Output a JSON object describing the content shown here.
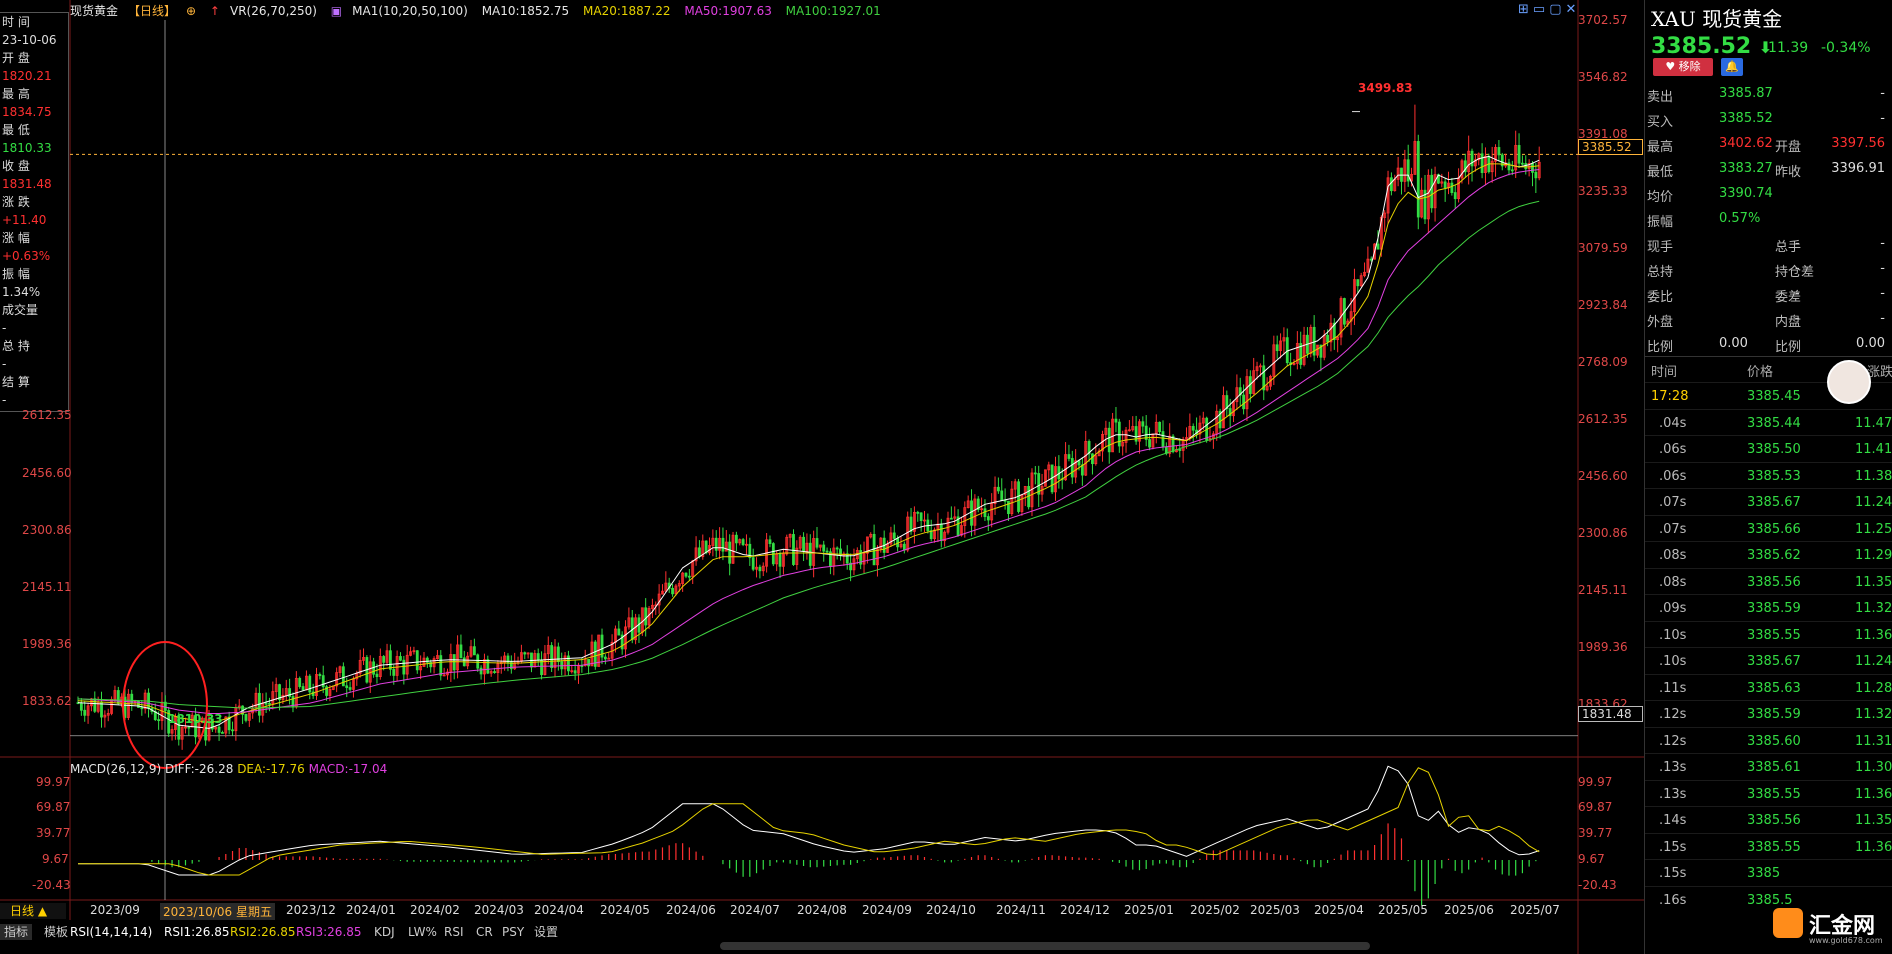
{
  "header": {
    "symbol_name": "现货黄金",
    "period_tag": "【日线】",
    "vr": "VR(26,70,250)",
    "ma_label": "MA1(10,20,50,100)",
    "ma10": "MA10:1852.75",
    "ma20": "MA20:1887.22",
    "ma50": "MA50:1907.63",
    "ma100": "MA100:1927.01"
  },
  "info_panel": {
    "time_label": "时 间",
    "time_value": "23-10-06",
    "open_label": "开 盘",
    "open_value": "1820.21",
    "high_label": "最 高",
    "high_value": "1834.75",
    "low_label": "最 低",
    "low_value": "1810.33",
    "close_label": "收 盘",
    "close_value": "1831.48",
    "change_label": "涨 跌",
    "change_value": "+11.40",
    "change_pct_label": "涨 幅",
    "change_pct_value": "+0.63%",
    "amplitude_label": "振 幅",
    "amplitude_value": "1.34%",
    "volume_label": "成交量",
    "volume_value": "-",
    "oi_label": "总 持",
    "oi_value": "-",
    "settle_label": "结 算",
    "settle_value": "-"
  },
  "price_axis": {
    "left_ticks": [
      "2612.35",
      "2456.60",
      "2300.86",
      "2145.11",
      "1989.36",
      "1833.62"
    ],
    "right_ticks": [
      "3702.57",
      "3546.82",
      "3391.08",
      "3235.33",
      "3079.59",
      "2923.84",
      "2768.09",
      "2612.35",
      "2456.60",
      "2300.86",
      "2145.11",
      "1989.36",
      "1833.62"
    ],
    "current_price_tag": "3385.52",
    "crosshair_price_tag": "1831.48",
    "high_annotation": "3499.83",
    "low_annotation": "1810.33"
  },
  "macd": {
    "label": "MACD(26,12,9)",
    "diff": "DIFF:-26.28",
    "dea": "DEA:-17.76",
    "macd": "MACD:-17.04",
    "ticks": [
      "99.97",
      "69.87",
      "39.77",
      "9.67",
      "-20.43"
    ]
  },
  "date_axis": {
    "period_button": "日线 ▲",
    "crosshair_date": "2023/10/06 星期五",
    "labels": [
      "2023/09",
      "2023/12",
      "2024/01",
      "2024/02",
      "2024/03",
      "2024/04",
      "2024/05",
      "2024/06",
      "2024/07",
      "2024/08",
      "2024/09",
      "2024/10",
      "2024/11",
      "2024/12",
      "2025/01",
      "2025/02",
      "2025/03",
      "2025/04",
      "2025/05",
      "2025/06",
      "2025/07"
    ]
  },
  "bottom_tabs": {
    "indicator_tab": "指标",
    "template_tab": "模板",
    "rsi_label": "RSI(14,14,14)",
    "rsi1": "RSI1:26.85",
    "rsi2": "RSI2:26.85",
    "rsi3": "RSI3:26.85",
    "sub_tabs": [
      "KDJ",
      "LW%",
      "RSI",
      "CR",
      "PSY",
      "设置"
    ]
  },
  "side_panel": {
    "code": "XAU",
    "name": "现货黄金",
    "last_price": "3385.52",
    "arrow": "⬇",
    "change": "-11.39",
    "change_pct": "-0.34%",
    "remove_button": "♥ 移除",
    "quote_rows": [
      {
        "label": "卖出",
        "value": "3385.87",
        "label2": "",
        "value2": "-"
      },
      {
        "label": "买入",
        "value": "3385.52",
        "label2": "",
        "value2": "-"
      },
      {
        "label": "最高",
        "value": "3402.62",
        "label2": "开盘",
        "value2": "3397.56"
      },
      {
        "label": "最低",
        "value": "3383.27",
        "label2": "昨收",
        "value2": "3396.91"
      },
      {
        "label": "均价",
        "value": "3390.74",
        "label2": "",
        "value2": ""
      },
      {
        "label": "振幅",
        "value": "0.57%",
        "label2": "",
        "value2": ""
      },
      {
        "label": "现手",
        "value": "-",
        "label2": "总手",
        "value2": "-"
      },
      {
        "label": "总持",
        "value": "-",
        "label2": "持仓差",
        "value2": "-"
      },
      {
        "label": "委比",
        "value": "-",
        "label2": "委差",
        "value2": "-"
      },
      {
        "label": "外盘",
        "value": "-",
        "label2": "内盘",
        "value2": "-"
      },
      {
        "label": "比例",
        "value": "0.00",
        "label2": "比例",
        "value2": "0.00"
      }
    ],
    "tick_headers": {
      "time": "时间",
      "price": "价格",
      "change": "涨跌"
    },
    "ticks": [
      {
        "time": "17:28",
        "price": "3385.45",
        "change": "1"
      },
      {
        "time": ".04s",
        "price": "3385.44",
        "change": "11.47"
      },
      {
        "time": ".06s",
        "price": "3385.50",
        "change": "11.41"
      },
      {
        "time": ".06s",
        "price": "3385.53",
        "change": "11.38"
      },
      {
        "time": ".07s",
        "price": "3385.67",
        "change": "11.24"
      },
      {
        "time": ".07s",
        "price": "3385.66",
        "change": "11.25"
      },
      {
        "time": ".08s",
        "price": "3385.62",
        "change": "11.29"
      },
      {
        "time": ".08s",
        "price": "3385.56",
        "change": "11.35"
      },
      {
        "time": ".09s",
        "price": "3385.59",
        "change": "11.32"
      },
      {
        "time": ".10s",
        "price": "3385.55",
        "change": "11.36"
      },
      {
        "time": ".10s",
        "price": "3385.67",
        "change": "11.24"
      },
      {
        "time": ".11s",
        "price": "3385.63",
        "change": "11.28"
      },
      {
        "time": ".12s",
        "price": "3385.59",
        "change": "11.32"
      },
      {
        "time": ".12s",
        "price": "3385.60",
        "change": "11.31"
      },
      {
        "time": ".13s",
        "price": "3385.61",
        "change": "11.30"
      },
      {
        "time": ".13s",
        "price": "3385.55",
        "change": "11.36"
      },
      {
        "time": ".14s",
        "price": "3385.56",
        "change": "11.35"
      },
      {
        "time": ".15s",
        "price": "3385.55",
        "change": "11.36"
      },
      {
        "time": ".15s",
        "price": "3385",
        "change": ""
      },
      {
        "time": ".16s",
        "price": "3385.5",
        "change": ""
      }
    ],
    "watermark_text": "汇金网",
    "watermark_url": "www.gold678.com"
  },
  "colors": {
    "up": "#ff3030",
    "down": "#33dd44",
    "ma10": "#ffffff",
    "ma20": "#e6d200",
    "ma50": "#e040e0",
    "ma100": "#40d040",
    "bg": "#000000"
  },
  "chart_data": {
    "type": "line",
    "title": "现货黄金",
    "xlabel": "",
    "ylabel": "",
    "ylim": [
      1780,
      3750
    ],
    "series": [
      {
        "name": "MA10",
        "values": [
          [
            0,
            1920
          ],
          [
            20,
            1910
          ],
          [
            30,
            1860
          ],
          [
            40,
            1850
          ],
          [
            50,
            1905
          ],
          [
            70,
            1960
          ],
          [
            90,
            2020
          ],
          [
            110,
            2035
          ],
          [
            130,
            2030
          ],
          [
            150,
            2040
          ],
          [
            160,
            2080
          ],
          [
            170,
            2150
          ],
          [
            180,
            2280
          ],
          [
            190,
            2340
          ],
          [
            200,
            2310
          ],
          [
            210,
            2330
          ],
          [
            220,
            2320
          ],
          [
            230,
            2310
          ],
          [
            240,
            2340
          ],
          [
            250,
            2390
          ],
          [
            260,
            2400
          ],
          [
            270,
            2450
          ],
          [
            280,
            2470
          ],
          [
            290,
            2520
          ],
          [
            300,
            2580
          ],
          [
            305,
            2620
          ],
          [
            310,
            2640
          ],
          [
            315,
            2630
          ],
          [
            320,
            2640
          ],
          [
            325,
            2630
          ],
          [
            330,
            2620
          ],
          [
            340,
            2690
          ],
          [
            350,
            2780
          ],
          [
            360,
            2860
          ],
          [
            370,
            2890
          ],
          [
            375,
            2940
          ],
          [
            380,
            3000
          ],
          [
            385,
            3070
          ],
          [
            390,
            3300
          ],
          [
            395,
            3350
          ],
          [
            400,
            3250
          ],
          [
            405,
            3330
          ],
          [
            410,
            3310
          ],
          [
            415,
            3370
          ],
          [
            420,
            3380
          ],
          [
            425,
            3360
          ],
          [
            430,
            3350
          ],
          [
            435,
            3370
          ]
        ]
      },
      {
        "name": "MA20",
        "values": [
          [
            0,
            1925
          ],
          [
            20,
            1915
          ],
          [
            30,
            1880
          ],
          [
            40,
            1865
          ],
          [
            50,
            1895
          ],
          [
            70,
            1945
          ],
          [
            90,
            2010
          ],
          [
            110,
            2030
          ],
          [
            130,
            2025
          ],
          [
            150,
            2035
          ],
          [
            160,
            2060
          ],
          [
            170,
            2120
          ],
          [
            180,
            2230
          ],
          [
            190,
            2310
          ],
          [
            200,
            2310
          ],
          [
            210,
            2320
          ],
          [
            220,
            2320
          ],
          [
            230,
            2315
          ],
          [
            240,
            2330
          ],
          [
            250,
            2370
          ],
          [
            260,
            2390
          ],
          [
            270,
            2430
          ],
          [
            280,
            2460
          ],
          [
            290,
            2500
          ],
          [
            300,
            2560
          ],
          [
            305,
            2600
          ],
          [
            310,
            2620
          ],
          [
            315,
            2625
          ],
          [
            320,
            2630
          ],
          [
            325,
            2625
          ],
          [
            330,
            2620
          ],
          [
            340,
            2670
          ],
          [
            350,
            2740
          ],
          [
            360,
            2820
          ],
          [
            370,
            2870
          ],
          [
            375,
            2900
          ],
          [
            380,
            2950
          ],
          [
            385,
            3020
          ],
          [
            390,
            3200
          ],
          [
            395,
            3290
          ],
          [
            400,
            3260
          ],
          [
            405,
            3290
          ],
          [
            410,
            3300
          ],
          [
            415,
            3340
          ],
          [
            420,
            3360
          ],
          [
            425,
            3360
          ],
          [
            430,
            3350
          ],
          [
            435,
            3355
          ]
        ]
      },
      {
        "name": "MA50",
        "values": [
          [
            0,
            1930
          ],
          [
            20,
            1920
          ],
          [
            30,
            1900
          ],
          [
            40,
            1890
          ],
          [
            50,
            1895
          ],
          [
            70,
            1920
          ],
          [
            90,
            1970
          ],
          [
            110,
            2000
          ],
          [
            130,
            2015
          ],
          [
            150,
            2020
          ],
          [
            160,
            2035
          ],
          [
            170,
            2070
          ],
          [
            180,
            2130
          ],
          [
            190,
            2190
          ],
          [
            200,
            2230
          ],
          [
            210,
            2260
          ],
          [
            220,
            2280
          ],
          [
            230,
            2290
          ],
          [
            240,
            2310
          ],
          [
            250,
            2340
          ],
          [
            260,
            2360
          ],
          [
            270,
            2390
          ],
          [
            280,
            2420
          ],
          [
            290,
            2450
          ],
          [
            300,
            2500
          ],
          [
            305,
            2540
          ],
          [
            310,
            2570
          ],
          [
            315,
            2590
          ],
          [
            320,
            2600
          ],
          [
            325,
            2605
          ],
          [
            330,
            2610
          ],
          [
            340,
            2640
          ],
          [
            350,
            2690
          ],
          [
            360,
            2750
          ],
          [
            370,
            2810
          ],
          [
            375,
            2840
          ],
          [
            380,
            2880
          ],
          [
            385,
            2930
          ],
          [
            390,
            3050
          ],
          [
            395,
            3120
          ],
          [
            400,
            3160
          ],
          [
            405,
            3200
          ],
          [
            410,
            3240
          ],
          [
            415,
            3280
          ],
          [
            420,
            3310
          ],
          [
            425,
            3330
          ],
          [
            430,
            3340
          ],
          [
            435,
            3345
          ]
        ]
      },
      {
        "name": "MA100",
        "values": [
          [
            0,
            1930
          ],
          [
            20,
            1925
          ],
          [
            30,
            1915
          ],
          [
            40,
            1910
          ],
          [
            50,
            1905
          ],
          [
            70,
            1910
          ],
          [
            90,
            1935
          ],
          [
            110,
            1960
          ],
          [
            130,
            1980
          ],
          [
            150,
            1995
          ],
          [
            160,
            2010
          ],
          [
            170,
            2035
          ],
          [
            180,
            2075
          ],
          [
            190,
            2120
          ],
          [
            200,
            2160
          ],
          [
            210,
            2200
          ],
          [
            220,
            2230
          ],
          [
            230,
            2255
          ],
          [
            240,
            2280
          ],
          [
            250,
            2310
          ],
          [
            260,
            2340
          ],
          [
            270,
            2370
          ],
          [
            280,
            2400
          ],
          [
            290,
            2430
          ],
          [
            300,
            2470
          ],
          [
            305,
            2500
          ],
          [
            310,
            2530
          ],
          [
            315,
            2555
          ],
          [
            320,
            2575
          ],
          [
            325,
            2590
          ],
          [
            330,
            2605
          ],
          [
            340,
            2630
          ],
          [
            350,
            2670
          ],
          [
            360,
            2720
          ],
          [
            370,
            2770
          ],
          [
            375,
            2800
          ],
          [
            380,
            2840
          ],
          [
            385,
            2880
          ],
          [
            390,
            2950
          ],
          [
            395,
            3000
          ],
          [
            400,
            3040
          ],
          [
            405,
            3090
          ],
          [
            410,
            3130
          ],
          [
            415,
            3170
          ],
          [
            420,
            3200
          ],
          [
            425,
            3230
          ],
          [
            430,
            3250
          ],
          [
            435,
            3260
          ]
        ]
      }
    ]
  }
}
